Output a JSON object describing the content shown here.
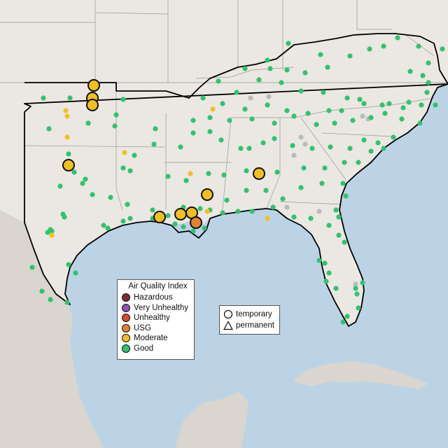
{
  "legend": {
    "title": "Air Quality Index",
    "categories": [
      {
        "label": "Hazardous",
        "color": "#7e2d2a"
      },
      {
        "label": "Very Unhealthy",
        "color": "#8e4fb4"
      },
      {
        "label": "Unhealthy",
        "color": "#e0462f"
      },
      {
        "label": "USG",
        "color": "#e4832b"
      },
      {
        "label": "Moderate",
        "color": "#f2c01e"
      },
      {
        "label": "Good",
        "color": "#2ec46e"
      }
    ]
  },
  "monitor_types": {
    "temporary": "temporary",
    "permanent": "permanent"
  },
  "colors": {
    "water": "#bcd3e6",
    "land": "#ebe7e2",
    "foreign_land": "#dad5cf",
    "no_data": "#bcbcbc",
    "region_outline": "#000000"
  }
}
